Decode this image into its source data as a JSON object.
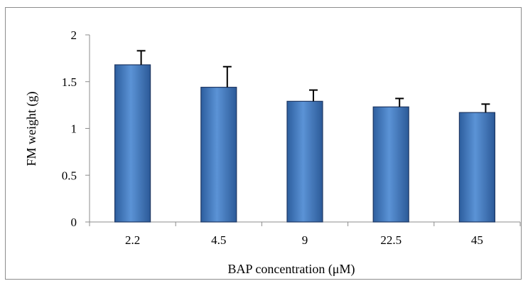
{
  "chart_data": {
    "type": "bar",
    "categories": [
      "2.2",
      "4.5",
      "9",
      "22.5",
      "45"
    ],
    "values": [
      1.68,
      1.44,
      1.29,
      1.23,
      1.17
    ],
    "errors": [
      0.15,
      0.22,
      0.12,
      0.09,
      0.09
    ],
    "xlabel": "BAP concentration (μM)",
    "ylabel": "FM weight (g)",
    "ylim": [
      0,
      2
    ],
    "yticks": [
      "0",
      "0.5",
      "1",
      "1.5",
      "2"
    ],
    "grid": false,
    "legend": "none",
    "colors": {
      "bar": "#4f81bd",
      "bar_edge": "#1f3864",
      "error_bar": "#000000"
    }
  }
}
